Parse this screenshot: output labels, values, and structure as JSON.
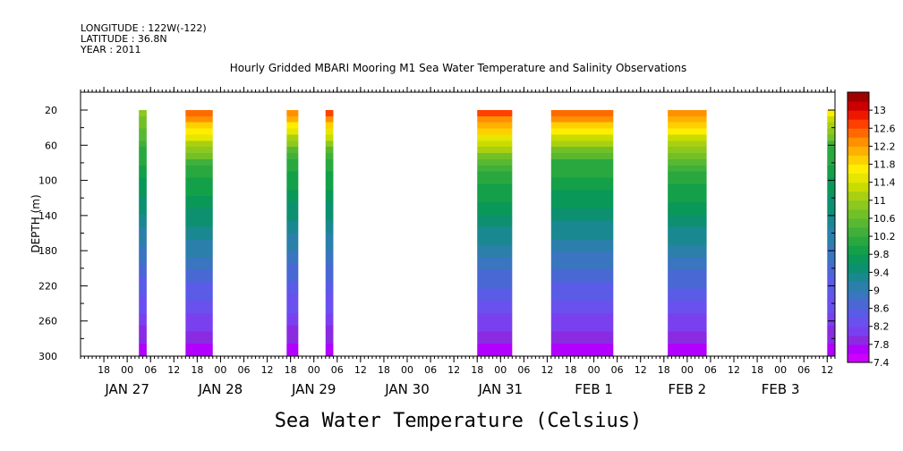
{
  "header": {
    "longitude": "LONGITUDE : 122W(-122)",
    "latitude": "LATITUDE : 36.8N",
    "year": "YEAR : 2011"
  },
  "chart_data": {
    "type": "heatmap",
    "title": "Hourly Gridded MBARI Mooring M1 Sea Water Temperature and Salinity Observations",
    "xlabel": "Sea Water Temperature (Celsius)",
    "ylabel": "DEPTH (m)",
    "x_start": "2011-01-26T12:00",
    "x_end": "2011-02-03T14:00",
    "ylim": [
      300,
      20
    ],
    "y_ticks": [
      20,
      60,
      100,
      140,
      180,
      220,
      260,
      300
    ],
    "y_tick_labels": [
      "20",
      "60",
      "100",
      "140",
      "180",
      "220",
      "260",
      "300"
    ],
    "x_hour_labels": [
      {
        "t": "2011-01-26T18:00",
        "label": "18"
      },
      {
        "t": "2011-01-27T00:00",
        "label": "00"
      },
      {
        "t": "2011-01-27T06:00",
        "label": "06"
      },
      {
        "t": "2011-01-27T12:00",
        "label": "12"
      },
      {
        "t": "2011-01-27T18:00",
        "label": "18"
      },
      {
        "t": "2011-01-28T00:00",
        "label": "00"
      },
      {
        "t": "2011-01-28T06:00",
        "label": "06"
      },
      {
        "t": "2011-01-28T12:00",
        "label": "12"
      },
      {
        "t": "2011-01-28T18:00",
        "label": "18"
      },
      {
        "t": "2011-01-29T00:00",
        "label": "00"
      },
      {
        "t": "2011-01-29T06:00",
        "label": "06"
      },
      {
        "t": "2011-01-29T12:00",
        "label": "12"
      },
      {
        "t": "2011-01-29T18:00",
        "label": "18"
      },
      {
        "t": "2011-01-30T00:00",
        "label": "00"
      },
      {
        "t": "2011-01-30T06:00",
        "label": "06"
      },
      {
        "t": "2011-01-30T12:00",
        "label": "12"
      },
      {
        "t": "2011-01-30T18:00",
        "label": "18"
      },
      {
        "t": "2011-01-31T00:00",
        "label": "00"
      },
      {
        "t": "2011-01-31T06:00",
        "label": "06"
      },
      {
        "t": "2011-01-31T12:00",
        "label": "12"
      },
      {
        "t": "2011-01-31T18:00",
        "label": "18"
      },
      {
        "t": "2011-02-01T00:00",
        "label": "00"
      },
      {
        "t": "2011-02-01T06:00",
        "label": "06"
      },
      {
        "t": "2011-02-01T12:00",
        "label": "12"
      },
      {
        "t": "2011-02-01T18:00",
        "label": "18"
      },
      {
        "t": "2011-02-02T00:00",
        "label": "00"
      },
      {
        "t": "2011-02-02T06:00",
        "label": "06"
      },
      {
        "t": "2011-02-02T12:00",
        "label": "12"
      },
      {
        "t": "2011-02-02T18:00",
        "label": "18"
      },
      {
        "t": "2011-02-03T00:00",
        "label": "00"
      },
      {
        "t": "2011-02-03T06:00",
        "label": "06"
      },
      {
        "t": "2011-02-03T12:00",
        "label": "12"
      }
    ],
    "x_date_labels": [
      {
        "t": "2011-01-27T00:00",
        "label": "JAN 27"
      },
      {
        "t": "2011-01-28T00:00",
        "label": "JAN 28"
      },
      {
        "t": "2011-01-29T00:00",
        "label": "JAN 29"
      },
      {
        "t": "2011-01-30T00:00",
        "label": "JAN 30"
      },
      {
        "t": "2011-01-31T00:00",
        "label": "JAN 31"
      },
      {
        "t": "2011-02-01T00:00",
        "label": "FEB  1"
      },
      {
        "t": "2011-02-02T00:00",
        "label": "FEB  2"
      },
      {
        "t": "2011-02-03T00:00",
        "label": "FEB  3"
      }
    ],
    "data_blocks": [
      {
        "start": "2011-01-27T03:00",
        "end": "2011-01-27T05:00",
        "surface_temp": 10.9,
        "warm_depth": 60
      },
      {
        "start": "2011-01-27T15:00",
        "end": "2011-01-27T22:00",
        "surface_temp": 12.5,
        "warm_depth": 80
      },
      {
        "start": "2011-01-28T17:00",
        "end": "2011-01-28T20:00",
        "surface_temp": 12.3,
        "warm_depth": 70
      },
      {
        "start": "2011-01-29T03:00",
        "end": "2011-01-29T05:00",
        "surface_temp": 12.6,
        "warm_depth": 70
      },
      {
        "start": "2011-01-30T18:00",
        "end": "2011-01-31T03:00",
        "surface_temp": 12.6,
        "warm_depth": 85
      },
      {
        "start": "2011-01-31T13:00",
        "end": "2011-02-01T05:00",
        "surface_temp": 12.5,
        "warm_depth": 75
      },
      {
        "start": "2011-02-01T19:00",
        "end": "2011-02-02T05:00",
        "surface_temp": 12.3,
        "warm_depth": 85
      },
      {
        "start": "2011-02-03T12:00",
        "end": "2011-02-03T14:00",
        "surface_temp": 11.6,
        "warm_depth": 60
      }
    ],
    "colorbar": {
      "levels": [
        7.4,
        7.6,
        7.8,
        8.0,
        8.2,
        8.4,
        8.6,
        8.8,
        9.0,
        9.2,
        9.4,
        9.6,
        9.8,
        10.0,
        10.2,
        10.4,
        10.6,
        10.8,
        11.0,
        11.2,
        11.4,
        11.6,
        11.8,
        12.0,
        12.2,
        12.4,
        12.6,
        12.8,
        13.0,
        13.2
      ],
      "labels": [
        "7.4",
        "7.8",
        "8.2",
        "8.6",
        "9",
        "9.4",
        "9.8",
        "10.2",
        "10.6",
        "11",
        "11.4",
        "11.8",
        "12.2",
        "12.6",
        "13"
      ],
      "colors": [
        "#cc00ff",
        "#b000ff",
        "#8a2be2",
        "#7a40f0",
        "#6a50ee",
        "#5a5be6",
        "#4a68d4",
        "#3a75c0",
        "#2a80aa",
        "#1a8890",
        "#0c9070",
        "#0a9858",
        "#14a048",
        "#2aa840",
        "#40b03a",
        "#58b832",
        "#72c028",
        "#8cc820",
        "#a8d010",
        "#c8dc00",
        "#e6e600",
        "#ffee00",
        "#ffd000",
        "#ffb000",
        "#ff9000",
        "#ff6a00",
        "#ff4000",
        "#ee1800",
        "#cc0000",
        "#a00000"
      ]
    }
  }
}
